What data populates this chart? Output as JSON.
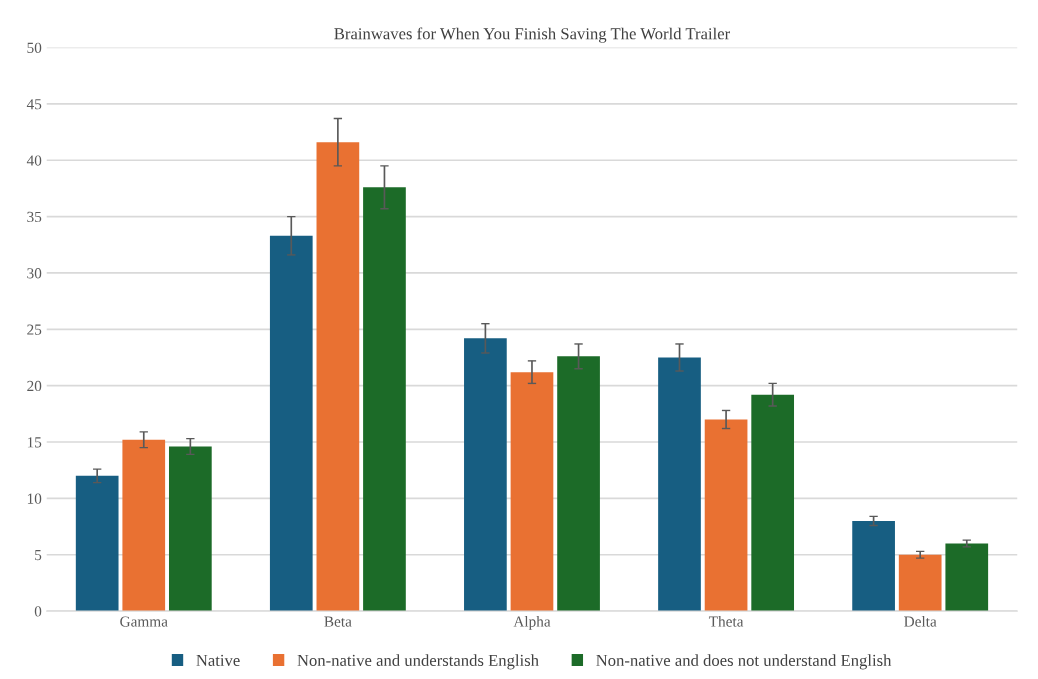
{
  "chart_data": {
    "type": "bar",
    "title": "Brainwaves for When You Finish Saving The World Trailer",
    "categories": [
      "Gamma",
      "Beta",
      "Alpha",
      "Theta",
      "Delta"
    ],
    "series": [
      {
        "name": "Native",
        "color": "#175e82",
        "values": [
          12.0,
          33.3,
          24.2,
          22.5,
          8.0
        ],
        "errors": [
          0.6,
          1.7,
          1.3,
          1.2,
          0.4
        ]
      },
      {
        "name": "Non-native and understands English",
        "color": "#e97132",
        "values": [
          15.2,
          41.6,
          21.2,
          17.0,
          5.0
        ],
        "errors": [
          0.7,
          2.1,
          1.0,
          0.8,
          0.3
        ]
      },
      {
        "name": "Non-native and does not understand English",
        "color": "#1c6b28",
        "values": [
          14.6,
          37.6,
          22.6,
          19.2,
          6.0
        ],
        "errors": [
          0.7,
          1.9,
          1.1,
          1.0,
          0.3
        ]
      }
    ],
    "ylim": [
      0,
      50
    ],
    "yticks": [
      0,
      5,
      10,
      15,
      20,
      25,
      30,
      35,
      40,
      45,
      50
    ],
    "grid": "y",
    "legend": "bottom"
  }
}
